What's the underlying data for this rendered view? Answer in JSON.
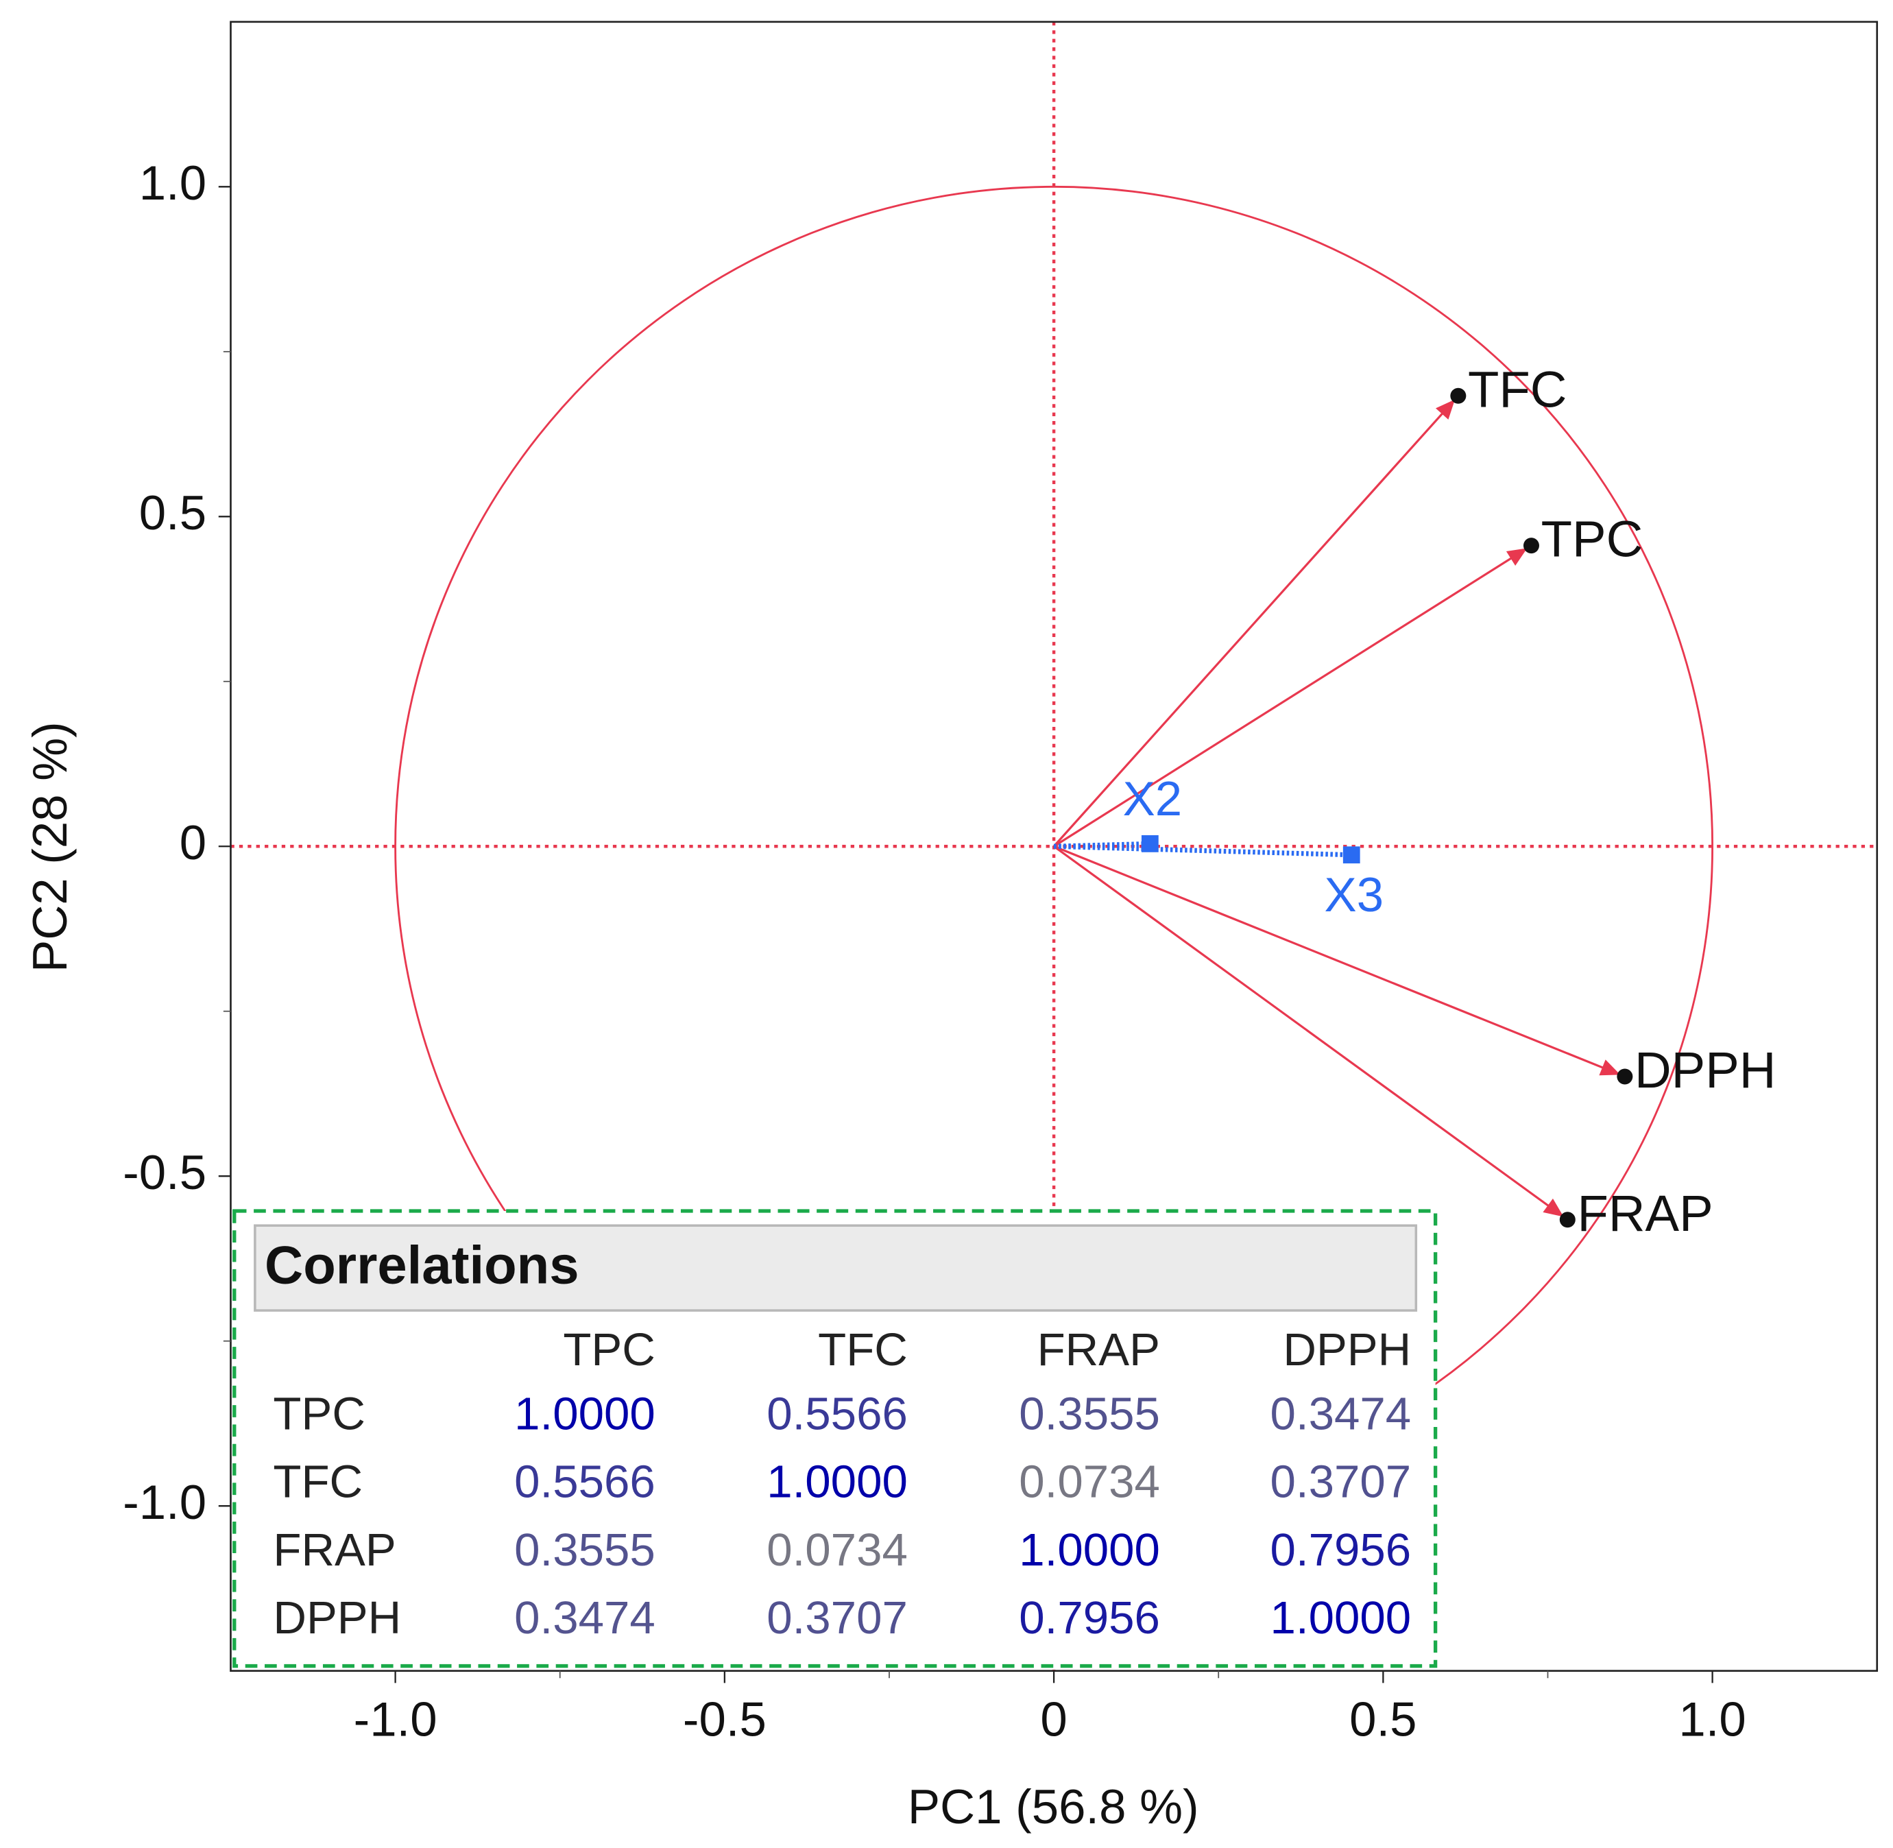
{
  "chart_data": {
    "type": "scatter",
    "x_label": "PC1  (56.8 %)",
    "y_label": "PC2  (28 %)",
    "xlim": [
      -1.25,
      1.25
    ],
    "ylim": [
      -1.25,
      1.25
    ],
    "xticks": [
      {
        "value": -1,
        "label": "-1.0"
      },
      -0.5,
      0,
      0.5,
      {
        "value": 1,
        "label": "1.0"
      }
    ],
    "yticks": [
      {
        "value": -1,
        "label": "-1.0"
      },
      -0.5,
      0,
      0.5,
      {
        "value": 1,
        "label": "1.0"
      }
    ],
    "minor_xticks": [
      -0.75,
      -0.25,
      0.25,
      0.75
    ],
    "minor_yticks": [
      -0.75,
      -0.25,
      0.25,
      0.75
    ],
    "circle_radius": 1,
    "reference_lines": {
      "x": 0,
      "y": 0,
      "color": "#e8384f"
    },
    "points": [
      {
        "label": "TFC",
        "x": 0.614,
        "y": 0.683,
        "color": "#e8384f",
        "style": "arrow"
      },
      {
        "label": "TPC",
        "x": 0.725,
        "y": 0.456,
        "color": "#e8384f",
        "style": "arrow"
      },
      {
        "label": "DPPH",
        "x": 0.867,
        "y": -0.349,
        "color": "#e8384f",
        "style": "arrow"
      },
      {
        "label": "FRAP",
        "x": 0.78,
        "y": -0.566,
        "color": "#e8384f",
        "style": "arrow"
      },
      {
        "label": "X2",
        "x": 0.146,
        "y": 0.004,
        "color": "#2a6bf2",
        "style": "dotted"
      },
      {
        "label": "X3",
        "x": 0.452,
        "y": -0.013,
        "color": "#2a6bf2",
        "style": "dotted"
      }
    ]
  },
  "table": {
    "title": "Correlations",
    "columns": [
      "TPC",
      "TFC",
      "FRAP",
      "DPPH"
    ],
    "rows": [
      {
        "label": "TPC",
        "values": [
          "1.0000",
          "0.5566",
          "0.3555",
          "0.3474"
        ]
      },
      {
        "label": "TFC",
        "values": [
          "0.5566",
          "1.0000",
          "0.0734",
          "0.3707"
        ]
      },
      {
        "label": "FRAP",
        "values": [
          "0.3555",
          "0.0734",
          "1.0000",
          "0.7956"
        ]
      },
      {
        "label": "DPPH",
        "values": [
          "0.3474",
          "0.3707",
          "0.7956",
          "1.0000"
        ]
      }
    ]
  }
}
